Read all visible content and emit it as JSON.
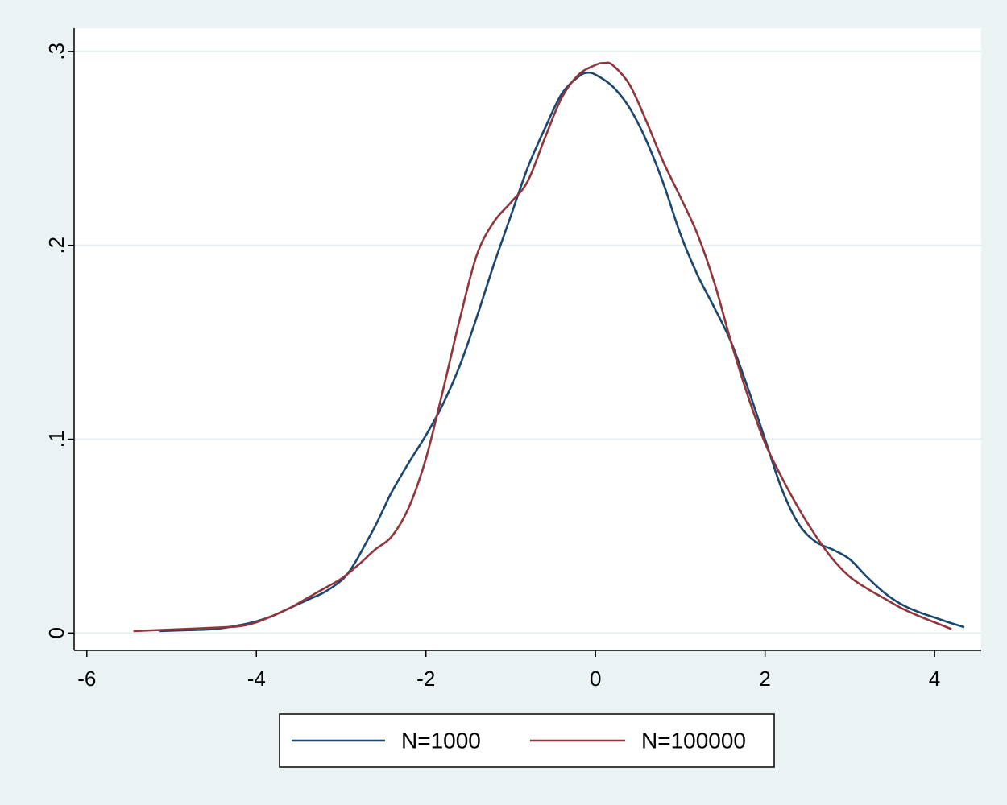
{
  "chart_data": {
    "type": "line",
    "title": "",
    "xlabel": "",
    "ylabel": "",
    "xlim": [
      -6.15,
      4.55
    ],
    "ylim": [
      -0.009,
      0.312
    ],
    "x_ticks": [
      -6,
      -4,
      -2,
      0,
      2,
      4
    ],
    "x_tick_labels": [
      "-6",
      "-4",
      "-2",
      "0",
      "2",
      "4"
    ],
    "y_ticks": [
      0,
      0.1,
      0.2,
      0.3
    ],
    "y_tick_labels": [
      "0",
      ".1",
      ".2",
      ".3"
    ],
    "grid": "horizontal",
    "legend_position": "bottom",
    "series": [
      {
        "name": "N=1000",
        "color": "#1a476f",
        "points": [
          [
            -5.15,
            0.001
          ],
          [
            -4.8,
            0.0015
          ],
          [
            -4.5,
            0.002
          ],
          [
            -4.2,
            0.004
          ],
          [
            -4.0,
            0.006
          ],
          [
            -3.8,
            0.009
          ],
          [
            -3.6,
            0.013
          ],
          [
            -3.4,
            0.017
          ],
          [
            -3.2,
            0.021
          ],
          [
            -3.0,
            0.027
          ],
          [
            -2.9,
            0.032
          ],
          [
            -2.8,
            0.039
          ],
          [
            -2.7,
            0.047
          ],
          [
            -2.6,
            0.055
          ],
          [
            -2.5,
            0.064
          ],
          [
            -2.4,
            0.073
          ],
          [
            -2.2,
            0.088
          ],
          [
            -2.0,
            0.102
          ],
          [
            -1.8,
            0.118
          ],
          [
            -1.6,
            0.138
          ],
          [
            -1.4,
            0.163
          ],
          [
            -1.2,
            0.19
          ],
          [
            -1.0,
            0.215
          ],
          [
            -0.8,
            0.24
          ],
          [
            -0.6,
            0.26
          ],
          [
            -0.4,
            0.278
          ],
          [
            -0.2,
            0.287
          ],
          [
            -0.1,
            0.289
          ],
          [
            0.0,
            0.288
          ],
          [
            0.2,
            0.282
          ],
          [
            0.4,
            0.271
          ],
          [
            0.6,
            0.254
          ],
          [
            0.8,
            0.232
          ],
          [
            1.0,
            0.206
          ],
          [
            1.2,
            0.185
          ],
          [
            1.4,
            0.168
          ],
          [
            1.6,
            0.15
          ],
          [
            1.8,
            0.126
          ],
          [
            2.0,
            0.1
          ],
          [
            2.2,
            0.074
          ],
          [
            2.4,
            0.056
          ],
          [
            2.6,
            0.047
          ],
          [
            2.8,
            0.043
          ],
          [
            3.0,
            0.038
          ],
          [
            3.2,
            0.029
          ],
          [
            3.4,
            0.021
          ],
          [
            3.6,
            0.015
          ],
          [
            3.8,
            0.011
          ],
          [
            4.0,
            0.008
          ],
          [
            4.2,
            0.005
          ],
          [
            4.35,
            0.003
          ]
        ]
      },
      {
        "name": "N=100000",
        "color": "#90353b",
        "points": [
          [
            -5.45,
            0.001
          ],
          [
            -5.0,
            0.0018
          ],
          [
            -4.6,
            0.0025
          ],
          [
            -4.2,
            0.0035
          ],
          [
            -4.0,
            0.0055
          ],
          [
            -3.8,
            0.009
          ],
          [
            -3.6,
            0.013
          ],
          [
            -3.4,
            0.018
          ],
          [
            -3.2,
            0.023
          ],
          [
            -3.0,
            0.028
          ],
          [
            -2.8,
            0.035
          ],
          [
            -2.6,
            0.043
          ],
          [
            -2.4,
            0.05
          ],
          [
            -2.2,
            0.065
          ],
          [
            -2.0,
            0.09
          ],
          [
            -1.8,
            0.125
          ],
          [
            -1.6,
            0.162
          ],
          [
            -1.4,
            0.195
          ],
          [
            -1.2,
            0.212
          ],
          [
            -1.0,
            0.222
          ],
          [
            -0.8,
            0.233
          ],
          [
            -0.6,
            0.255
          ],
          [
            -0.4,
            0.276
          ],
          [
            -0.2,
            0.288
          ],
          [
            0.0,
            0.293
          ],
          [
            0.1,
            0.294
          ],
          [
            0.2,
            0.293
          ],
          [
            0.4,
            0.283
          ],
          [
            0.6,
            0.264
          ],
          [
            0.8,
            0.243
          ],
          [
            1.0,
            0.225
          ],
          [
            1.2,
            0.206
          ],
          [
            1.4,
            0.181
          ],
          [
            1.6,
            0.15
          ],
          [
            1.8,
            0.122
          ],
          [
            2.0,
            0.098
          ],
          [
            2.2,
            0.08
          ],
          [
            2.4,
            0.064
          ],
          [
            2.6,
            0.05
          ],
          [
            2.8,
            0.038
          ],
          [
            3.0,
            0.029
          ],
          [
            3.2,
            0.023
          ],
          [
            3.4,
            0.018
          ],
          [
            3.6,
            0.013
          ],
          [
            3.8,
            0.009
          ],
          [
            4.0,
            0.0055
          ],
          [
            4.2,
            0.002
          ]
        ]
      }
    ]
  }
}
